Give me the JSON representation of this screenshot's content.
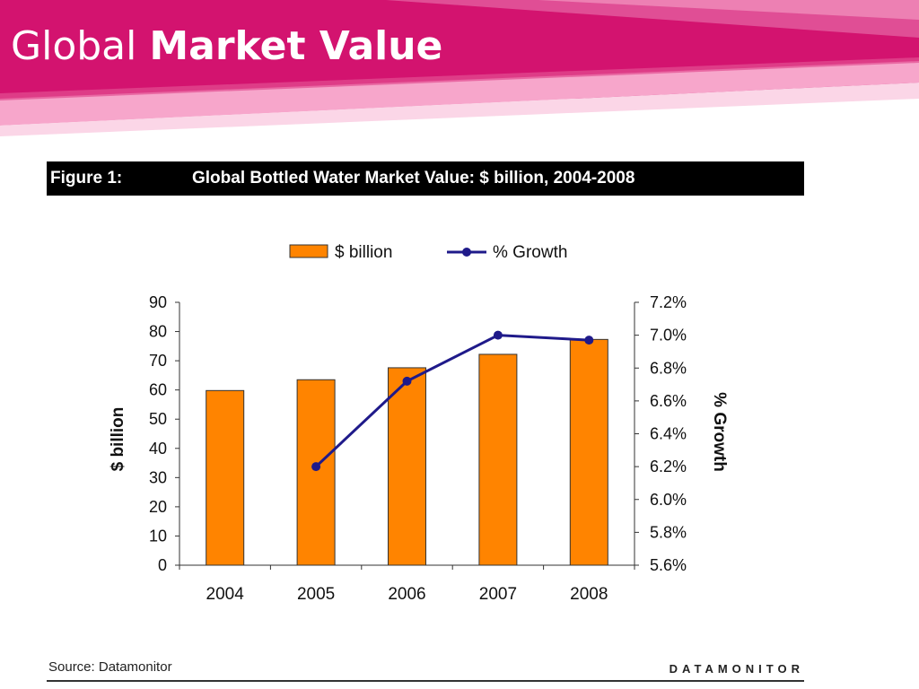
{
  "slide": {
    "title_light": "Global",
    "title_bold": "Market Value"
  },
  "figure": {
    "number": "Figure 1:",
    "title": "Global Bottled Water Market Value: $ billion, 2004-2008"
  },
  "chart_data": {
    "type": "bar",
    "title": "Global Bottled Water Market Value: $ billion, 2004-2008",
    "categories": [
      "2004",
      "2005",
      "2006",
      "2007",
      "2008"
    ],
    "series": [
      {
        "name": "$ billion",
        "kind": "bar",
        "axis": "left",
        "color": "#ff8400",
        "values": [
          59.8,
          63.5,
          67.6,
          72.2,
          77.3
        ]
      },
      {
        "name": "% Growth",
        "kind": "line",
        "axis": "right",
        "color": "#1f1a8a",
        "values": [
          null,
          6.2,
          6.72,
          7.0,
          6.97
        ]
      }
    ],
    "ylabel": "$ billion",
    "y2label": "% Growth",
    "ylim": [
      0,
      90
    ],
    "y2lim": [
      5.6,
      7.2
    ],
    "yticks": [
      "0",
      "10",
      "20",
      "30",
      "40",
      "50",
      "60",
      "70",
      "80",
      "90"
    ],
    "y2ticks": [
      "5.6%",
      "5.8%",
      "6.0%",
      "6.2%",
      "6.4%",
      "6.6%",
      "6.8%",
      "7.0%",
      "7.2%"
    ],
    "legend": "top",
    "grid": false
  },
  "source": "Source: Datamonitor",
  "brand": "DATAMONITOR",
  "colors": {
    "banner": "#d3136f",
    "bar": "#ff8400",
    "line": "#1f1a8a"
  }
}
